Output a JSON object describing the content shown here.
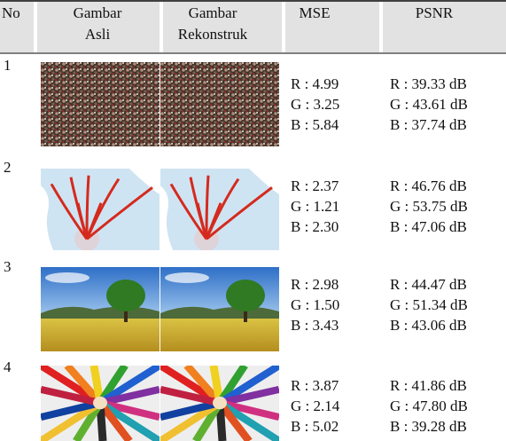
{
  "table": {
    "header": {
      "no": "No",
      "original": [
        "Gambar",
        "Asli"
      ],
      "reconstructed": [
        "Gambar",
        "Rekonstruk"
      ],
      "mse": "MSE",
      "psnr": "PSNR"
    },
    "rows": [
      {
        "no": "1",
        "mse": [
          "R : 4.99",
          "G : 3.25",
          "B : 5.84"
        ],
        "psnr": [
          "R : 39.33 dB",
          "G : 43.61 dB",
          "B : 37.74 dB"
        ]
      },
      {
        "no": "2",
        "mse": [
          "R : 2.37",
          "G : 1.21",
          "B : 2.30"
        ],
        "psnr": [
          "R : 46.76 dB",
          "G : 53.75 dB",
          "B : 47.06 dB"
        ]
      },
      {
        "no": "3",
        "mse": [
          "R : 2.98",
          "G : 1.50",
          "B : 3.43"
        ],
        "psnr": [
          "R : 44.47 dB",
          "G : 51.34 dB",
          "B : 43.06 dB"
        ]
      },
      {
        "no": "4",
        "mse": [
          "R : 3.87",
          "G : 2.14",
          "B : 5.02"
        ],
        "psnr": [
          "R : 41.86 dB",
          "G : 47.80 dB",
          "B : 39.28 dB"
        ]
      }
    ]
  }
}
